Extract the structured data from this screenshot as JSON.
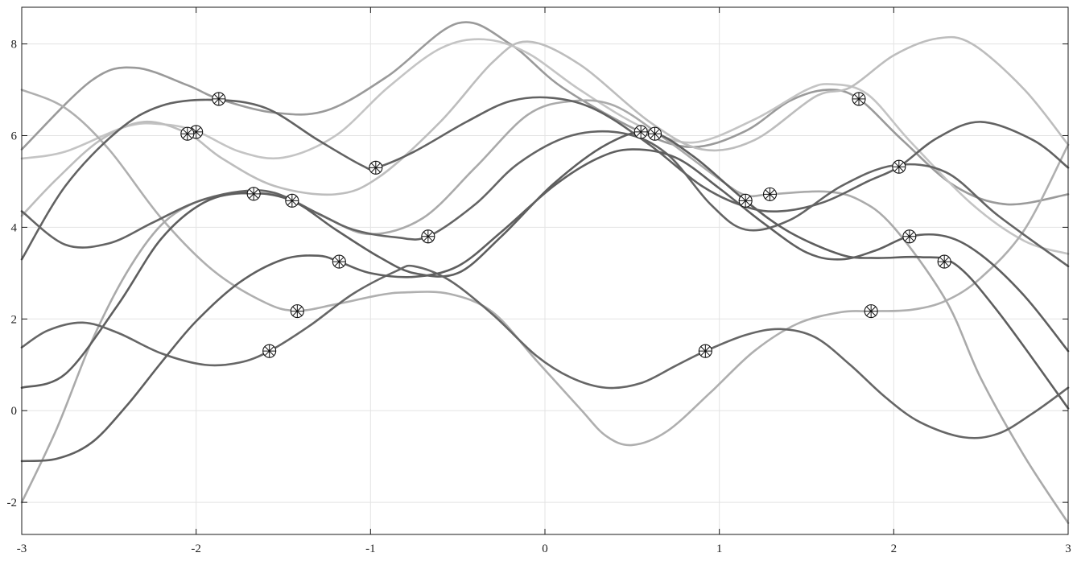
{
  "chart_data": {
    "type": "line",
    "title": "",
    "xlabel": "",
    "ylabel": "",
    "xlim": [
      -3,
      3
    ],
    "ylim": [
      -2.7,
      8.8
    ],
    "xticks": [
      "-3",
      "-2",
      "-1",
      "0",
      "1",
      "2",
      "3"
    ],
    "yticks": [
      "-2",
      "0",
      "2",
      "4",
      "6",
      "8"
    ],
    "grid": true,
    "legend": "none",
    "marker": "circled-asterisk",
    "series": [
      {
        "color": "#9a9a9a",
        "points": [
          [
            -3,
            5.7
          ],
          [
            -2.6,
            7.2
          ],
          [
            -2.35,
            7.48
          ],
          [
            -2.05,
            7.1
          ],
          [
            -1.87,
            6.8
          ],
          [
            -1.55,
            6.5
          ],
          [
            -1.25,
            6.55
          ],
          [
            -0.9,
            7.3
          ],
          [
            -0.5,
            8.45
          ],
          [
            -0.2,
            8.0
          ],
          [
            0.1,
            7.05
          ],
          [
            0.55,
            6.08
          ],
          [
            0.85,
            5.75
          ],
          [
            1.15,
            6.1
          ],
          [
            1.4,
            6.75
          ],
          [
            1.62,
            7.0
          ],
          [
            1.8,
            6.8
          ],
          [
            2.05,
            5.9
          ],
          [
            2.35,
            4.9
          ],
          [
            2.65,
            4.5
          ],
          [
            3,
            4.72
          ]
        ],
        "markers": [
          [
            -1.87,
            6.8
          ],
          [
            0.55,
            6.08
          ],
          [
            1.8,
            6.8
          ]
        ]
      },
      {
        "color": "#c4c4c4",
        "points": [
          [
            -3,
            5.5
          ],
          [
            -2.75,
            5.65
          ],
          [
            -2.4,
            6.2
          ],
          [
            -2.2,
            6.25
          ],
          [
            -2.0,
            6.1
          ],
          [
            -1.75,
            5.65
          ],
          [
            -1.5,
            5.52
          ],
          [
            -1.2,
            6.0
          ],
          [
            -0.9,
            7.05
          ],
          [
            -0.6,
            7.9
          ],
          [
            -0.35,
            8.1
          ],
          [
            -0.1,
            7.8
          ],
          [
            0.2,
            7.0
          ],
          [
            0.55,
            6.2
          ],
          [
            0.85,
            5.85
          ],
          [
            1.2,
            6.35
          ],
          [
            1.5,
            7.0
          ],
          [
            1.65,
            7.12
          ],
          [
            1.85,
            6.9
          ],
          [
            2.1,
            5.85
          ],
          [
            2.45,
            4.5
          ],
          [
            2.75,
            3.7
          ],
          [
            3,
            3.42
          ]
        ],
        "markers": [
          [
            -2.0,
            6.08
          ]
        ]
      },
      {
        "color": "#bdbdbd",
        "points": [
          [
            -3,
            4.25
          ],
          [
            -2.8,
            5.05
          ],
          [
            -2.55,
            5.9
          ],
          [
            -2.3,
            6.3
          ],
          [
            -2.05,
            6.05
          ],
          [
            -1.85,
            5.5
          ],
          [
            -1.55,
            4.9
          ],
          [
            -1.2,
            4.72
          ],
          [
            -0.95,
            5.1
          ],
          [
            -0.6,
            6.3
          ],
          [
            -0.3,
            7.6
          ],
          [
            -0.1,
            8.05
          ],
          [
            0.2,
            7.55
          ],
          [
            0.6,
            6.3
          ],
          [
            0.9,
            5.7
          ],
          [
            1.2,
            5.9
          ],
          [
            1.55,
            6.85
          ],
          [
            1.75,
            7.05
          ],
          [
            2.0,
            7.75
          ],
          [
            2.25,
            8.12
          ],
          [
            2.45,
            8.0
          ],
          [
            2.75,
            7.0
          ],
          [
            3,
            5.8
          ]
        ],
        "markers": []
      },
      {
        "color": "#afafaf",
        "points": [
          [
            -3,
            7.0
          ],
          [
            -2.75,
            6.6
          ],
          [
            -2.5,
            5.7
          ],
          [
            -2.2,
            4.2
          ],
          [
            -1.9,
            3.05
          ],
          [
            -1.6,
            2.35
          ],
          [
            -1.42,
            2.18
          ],
          [
            -1.2,
            2.32
          ],
          [
            -0.95,
            2.52
          ],
          [
            -0.8,
            2.58
          ],
          [
            -0.55,
            2.55
          ],
          [
            -0.3,
            2.15
          ],
          [
            -0.05,
            1.1
          ],
          [
            0.2,
            0.05
          ],
          [
            0.35,
            -0.55
          ],
          [
            0.5,
            -0.75
          ],
          [
            0.7,
            -0.45
          ],
          [
            0.95,
            0.4
          ],
          [
            1.2,
            1.3
          ],
          [
            1.45,
            1.9
          ],
          [
            1.7,
            2.15
          ],
          [
            1.87,
            2.17
          ],
          [
            2.1,
            2.2
          ],
          [
            2.3,
            2.4
          ],
          [
            2.5,
            2.9
          ],
          [
            2.75,
            3.95
          ],
          [
            3,
            5.8
          ]
        ],
        "markers": [
          [
            -1.42,
            2.17
          ],
          [
            1.87,
            2.17
          ]
        ]
      },
      {
        "color": "#aaaaaa",
        "points": [
          [
            -3,
            -2.0
          ],
          [
            -2.8,
            -0.4
          ],
          [
            -2.6,
            1.5
          ],
          [
            -2.4,
            3.0
          ],
          [
            -2.2,
            4.05
          ],
          [
            -2.0,
            4.55
          ],
          [
            -1.8,
            4.72
          ],
          [
            -1.67,
            4.73
          ],
          [
            -1.5,
            4.68
          ],
          [
            -1.25,
            4.2
          ],
          [
            -1.0,
            3.85
          ],
          [
            -0.7,
            4.2
          ],
          [
            -0.4,
            5.3
          ],
          [
            -0.1,
            6.45
          ],
          [
            0.15,
            6.75
          ],
          [
            0.4,
            6.65
          ],
          [
            0.7,
            5.9
          ],
          [
            1.0,
            5.05
          ],
          [
            1.15,
            4.7
          ],
          [
            1.29,
            4.72
          ],
          [
            1.6,
            4.78
          ],
          [
            1.8,
            4.6
          ],
          [
            2.0,
            4.0
          ],
          [
            2.3,
            2.4
          ],
          [
            2.5,
            0.7
          ],
          [
            2.75,
            -1.0
          ],
          [
            3,
            -2.45
          ]
        ],
        "markers": [
          [
            -1.67,
            4.73
          ],
          [
            1.29,
            4.72
          ]
        ]
      },
      {
        "color": "#626262",
        "points": [
          [
            -3,
            3.3
          ],
          [
            -2.75,
            4.9
          ],
          [
            -2.45,
            6.1
          ],
          [
            -2.2,
            6.65
          ],
          [
            -1.9,
            6.78
          ],
          [
            -1.6,
            6.6
          ],
          [
            -1.3,
            5.9
          ],
          [
            -1.05,
            5.35
          ],
          [
            -0.97,
            5.3
          ],
          [
            -0.75,
            5.65
          ],
          [
            -0.45,
            6.3
          ],
          [
            -0.2,
            6.75
          ],
          [
            0.05,
            6.82
          ],
          [
            0.3,
            6.55
          ],
          [
            0.6,
            5.8
          ],
          [
            0.9,
            4.9
          ],
          [
            1.15,
            4.45
          ],
          [
            1.35,
            4.35
          ],
          [
            1.6,
            4.55
          ],
          [
            1.85,
            5.0
          ],
          [
            2.03,
            5.32
          ],
          [
            2.25,
            5.95
          ],
          [
            2.5,
            6.3
          ],
          [
            2.8,
            5.9
          ],
          [
            3,
            5.3
          ]
        ],
        "markers": [
          [
            -0.97,
            5.3
          ],
          [
            2.03,
            5.32
          ]
        ]
      },
      {
        "color": "#646464",
        "points": [
          [
            -3,
            4.35
          ],
          [
            -2.75,
            3.62
          ],
          [
            -2.5,
            3.65
          ],
          [
            -2.25,
            4.1
          ],
          [
            -2.0,
            4.55
          ],
          [
            -1.75,
            4.78
          ],
          [
            -1.55,
            4.75
          ],
          [
            -1.3,
            4.3
          ],
          [
            -1.1,
            3.95
          ],
          [
            -0.85,
            3.78
          ],
          [
            -0.67,
            3.8
          ],
          [
            -0.4,
            4.5
          ],
          [
            -0.15,
            5.4
          ],
          [
            0.15,
            6.0
          ],
          [
            0.45,
            6.05
          ],
          [
            0.7,
            5.6
          ],
          [
            0.95,
            4.5
          ],
          [
            1.15,
            3.95
          ],
          [
            1.4,
            4.15
          ],
          [
            1.7,
            4.9
          ],
          [
            2.0,
            5.35
          ],
          [
            2.3,
            5.2
          ],
          [
            2.6,
            4.25
          ],
          [
            3,
            3.15
          ]
        ],
        "markers": [
          [
            -0.67,
            3.8
          ]
        ]
      },
      {
        "color": "#5e5e5e",
        "points": [
          [
            -3,
            0.5
          ],
          [
            -2.75,
            0.8
          ],
          [
            -2.45,
            2.3
          ],
          [
            -2.2,
            3.75
          ],
          [
            -1.95,
            4.55
          ],
          [
            -1.7,
            4.75
          ],
          [
            -1.45,
            4.58
          ],
          [
            -1.2,
            3.95
          ],
          [
            -0.95,
            3.35
          ],
          [
            -0.75,
            3.0
          ],
          [
            -0.5,
            3.0
          ],
          [
            -0.25,
            3.8
          ],
          [
            0.05,
            4.95
          ],
          [
            0.35,
            5.8
          ],
          [
            0.6,
            6.08
          ],
          [
            0.85,
            5.55
          ],
          [
            1.15,
            4.58
          ],
          [
            1.4,
            3.9
          ],
          [
            1.7,
            3.4
          ],
          [
            1.9,
            3.33
          ],
          [
            2.15,
            3.35
          ],
          [
            2.35,
            3.2
          ],
          [
            2.6,
            2.15
          ],
          [
            3,
            0.05
          ]
        ],
        "markers": [
          [
            -1.45,
            4.58
          ],
          [
            1.15,
            4.58
          ]
        ]
      },
      {
        "color": "#666666",
        "points": [
          [
            -3,
            1.38
          ],
          [
            -2.85,
            1.75
          ],
          [
            -2.65,
            1.92
          ],
          [
            -2.45,
            1.7
          ],
          [
            -2.2,
            1.25
          ],
          [
            -1.95,
            1.0
          ],
          [
            -1.75,
            1.05
          ],
          [
            -1.58,
            1.3
          ],
          [
            -1.35,
            1.85
          ],
          [
            -1.1,
            2.55
          ],
          [
            -0.85,
            3.05
          ],
          [
            -0.75,
            3.15
          ],
          [
            -0.55,
            2.85
          ],
          [
            -0.3,
            2.1
          ],
          [
            -0.05,
            1.2
          ],
          [
            0.15,
            0.72
          ],
          [
            0.35,
            0.5
          ],
          [
            0.55,
            0.6
          ],
          [
            0.75,
            0.98
          ],
          [
            0.92,
            1.3
          ],
          [
            1.15,
            1.65
          ],
          [
            1.35,
            1.78
          ],
          [
            1.55,
            1.6
          ],
          [
            1.75,
            1.0
          ],
          [
            1.95,
            0.3
          ],
          [
            2.15,
            -0.25
          ],
          [
            2.4,
            -0.58
          ],
          [
            2.6,
            -0.5
          ],
          [
            2.8,
            -0.05
          ],
          [
            3,
            0.5
          ]
        ],
        "markers": [
          [
            -1.58,
            1.3
          ],
          [
            0.92,
            1.3
          ]
        ]
      },
      {
        "color": "#5f5f5f",
        "points": [
          [
            -3,
            -1.1
          ],
          [
            -2.8,
            -1.05
          ],
          [
            -2.6,
            -0.7
          ],
          [
            -2.4,
            0.1
          ],
          [
            -2.2,
            1.05
          ],
          [
            -2.0,
            1.95
          ],
          [
            -1.75,
            2.8
          ],
          [
            -1.5,
            3.3
          ],
          [
            -1.3,
            3.38
          ],
          [
            -1.18,
            3.25
          ],
          [
            -1.0,
            3.0
          ],
          [
            -0.75,
            2.92
          ],
          [
            -0.5,
            3.15
          ],
          [
            -0.25,
            3.9
          ],
          [
            0.05,
            4.9
          ],
          [
            0.3,
            5.5
          ],
          [
            0.5,
            5.7
          ],
          [
            0.75,
            5.52
          ],
          [
            1.0,
            4.85
          ],
          [
            1.25,
            4.1
          ],
          [
            1.5,
            3.45
          ],
          [
            1.7,
            3.3
          ],
          [
            1.9,
            3.5
          ],
          [
            2.09,
            3.8
          ],
          [
            2.3,
            3.8
          ],
          [
            2.5,
            3.4
          ],
          [
            2.75,
            2.5
          ],
          [
            3,
            1.3
          ]
        ],
        "markers": [
          [
            -1.18,
            3.25
          ],
          [
            2.09,
            3.8
          ],
          [
            2.29,
            3.25
          ]
        ]
      },
      {
        "color": "#9c9c9c",
        "points": [],
        "markers": [
          [
            -2.05,
            6.04
          ],
          [
            0.63,
            6.04
          ]
        ]
      }
    ]
  }
}
